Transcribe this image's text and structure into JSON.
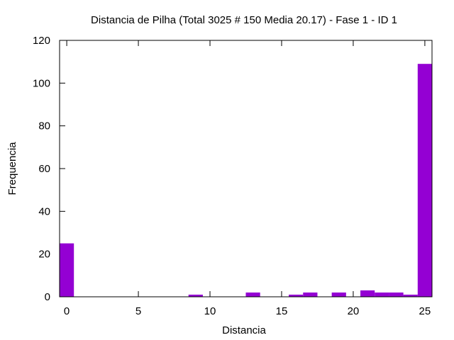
{
  "chart_data": {
    "type": "bar",
    "title": "Distancia de Pilha (Total 3025 # 150 Media 20.17) - Fase  1 - ID 1",
    "xlabel": "Distancia",
    "ylabel": "Frequencia",
    "xlim": [
      -0.5,
      25.5
    ],
    "ylim": [
      0,
      120
    ],
    "xticks": [
      0,
      5,
      10,
      15,
      20,
      25
    ],
    "yticks": [
      0,
      20,
      40,
      60,
      80,
      100,
      120
    ],
    "bar_color": "#9400d3",
    "grid": false,
    "legend": "none",
    "x": [
      0,
      9,
      13,
      16,
      17,
      19,
      21,
      22,
      23,
      24,
      25
    ],
    "values": [
      25,
      1,
      2,
      1,
      2,
      2,
      3,
      2,
      2,
      1,
      109
    ]
  }
}
